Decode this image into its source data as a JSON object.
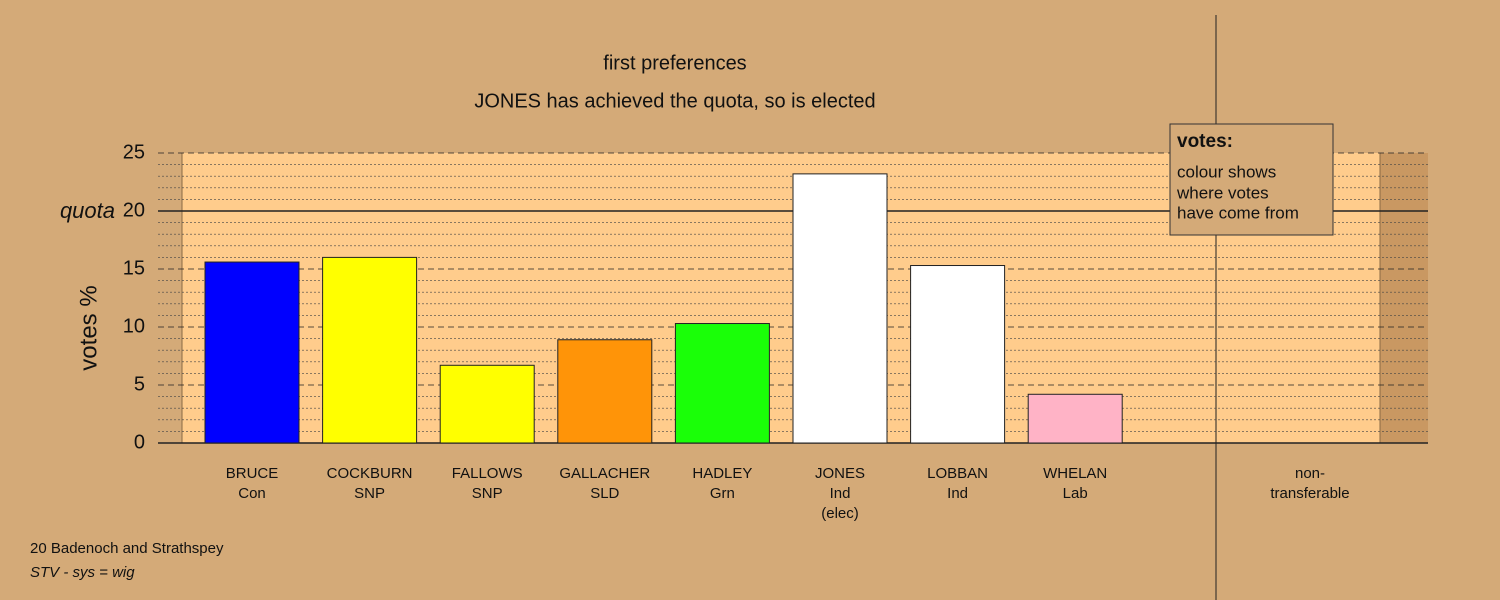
{
  "chart_data": {
    "type": "bar",
    "title": "first preferences",
    "subtitle": "JONES has achieved the quota, so is elected",
    "y_label": "votes %",
    "categories": [
      "BRUCE",
      "COCKBURN",
      "FALLOWS",
      "GALLACHER",
      "HADLEY",
      "JONES",
      "LOBBAN",
      "WHELAN"
    ],
    "parties": [
      "Con",
      "SNP",
      "SNP",
      "SLD",
      "Grn",
      "Ind",
      "Ind",
      "Lab"
    ],
    "notes": [
      null,
      null,
      null,
      null,
      null,
      "(elec)",
      null,
      null
    ],
    "values": [
      15.6,
      16.0,
      6.7,
      8.9,
      10.3,
      23.2,
      15.3,
      4.2
    ],
    "colors": [
      "#0000ff",
      "#ffff00",
      "#ffff00",
      "#ff9408",
      "#1aff08",
      "#ffffff",
      "#ffffff",
      "#ffb3c6"
    ],
    "ylim": [
      0,
      25
    ],
    "yticks": [
      0,
      5,
      10,
      15,
      20,
      25
    ],
    "minor_yticks": [
      1,
      2,
      3,
      4,
      6,
      7,
      8,
      9,
      11,
      12,
      13,
      14,
      16,
      17,
      18,
      19,
      21,
      22,
      23,
      24
    ],
    "quota": 20,
    "quota_label": "quota",
    "nontransferable_label": [
      "non-",
      "transferable"
    ],
    "legend": {
      "title": "votes:",
      "lines": [
        "colour shows",
        "where votes",
        "have come from"
      ]
    },
    "footer": [
      "20 Badenoch and Strathspey",
      "STV - sys = wig"
    ]
  }
}
